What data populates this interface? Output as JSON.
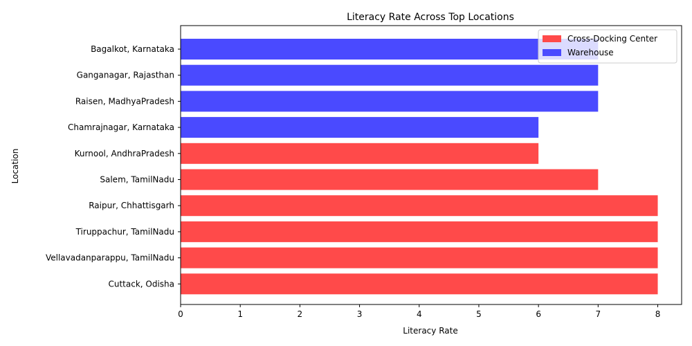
{
  "chart_data": {
    "type": "bar",
    "orientation": "horizontal",
    "title": "Literacy Rate Across Top Locations",
    "xlabel": "Literacy Rate",
    "ylabel": "Location",
    "xlim": [
      0,
      8.4
    ],
    "xticks": [
      "0",
      "1",
      "2",
      "3",
      "4",
      "5",
      "6",
      "7",
      "8"
    ],
    "grid": false,
    "legend_position": "top-right",
    "legend": [
      {
        "label": "Cross-Docking Center",
        "color": "#ff4a4a"
      },
      {
        "label": "Warehouse",
        "color": "#4a4aff"
      }
    ],
    "bars": [
      {
        "location": "Bagalkot, Karnataka",
        "value": 7,
        "type": "Warehouse"
      },
      {
        "location": "Ganganagar, Rajasthan",
        "value": 7,
        "type": "Warehouse"
      },
      {
        "location": "Raisen, MadhyaPradesh",
        "value": 7,
        "type": "Warehouse"
      },
      {
        "location": "Chamrajnagar, Karnataka",
        "value": 6,
        "type": "Warehouse"
      },
      {
        "location": "Kurnool, AndhraPradesh",
        "value": 6,
        "type": "Cross-Docking Center"
      },
      {
        "location": "Salem, TamilNadu",
        "value": 7,
        "type": "Cross-Docking Center"
      },
      {
        "location": "Raipur, Chhattisgarh",
        "value": 8,
        "type": "Cross-Docking Center"
      },
      {
        "location": "Tiruppachur, TamilNadu",
        "value": 8,
        "type": "Cross-Docking Center"
      },
      {
        "location": "Vellavadanparappu, TamilNadu",
        "value": 8,
        "type": "Cross-Docking Center"
      },
      {
        "location": "Cuttack, Odisha",
        "value": 8,
        "type": "Cross-Docking Center"
      }
    ]
  }
}
